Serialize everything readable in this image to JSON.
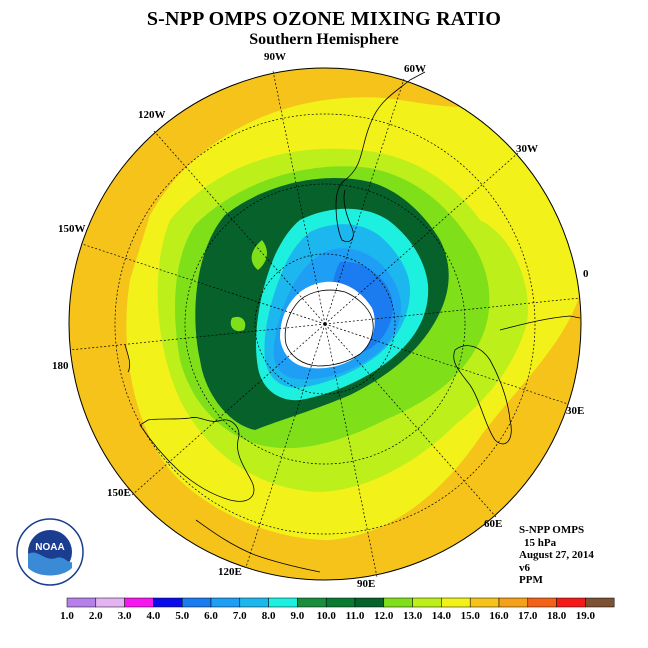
{
  "header": {
    "title": "S-NPP OMPS OZONE MIXING RATIO",
    "subtitle": "Southern Hemisphere"
  },
  "map": {
    "projection": "south-polar-stereographic",
    "longitude_labels": [
      "90W",
      "60W",
      "30W",
      "0",
      "30E",
      "60E",
      "90E",
      "120E",
      "150E",
      "180",
      "150W",
      "120W"
    ]
  },
  "info": {
    "instrument": "S-NPP OMPS",
    "level": "15 hPa",
    "date": "August 27, 2014",
    "version": "v6",
    "units": "PPM"
  },
  "colorbar": {
    "labels": [
      "1.0",
      "2.0",
      "3.0",
      "4.0",
      "5.0",
      "6.0",
      "7.0",
      "8.0",
      "9.0",
      "10.0",
      "11.0",
      "12.0",
      "13.0",
      "14.0",
      "15.0",
      "16.0",
      "17.0",
      "18.0",
      "19.0"
    ],
    "colors": [
      "#b580ea",
      "#e2b4f2",
      "#f516f0",
      "#0c0cea",
      "#1a7cf0",
      "#1e9ef5",
      "#1cb7ee",
      "#1ef0e0",
      "#1a8c3e",
      "#0a7a32",
      "#07612a",
      "#7fe01a",
      "#bdf01a",
      "#f2f21a",
      "#f5c31a",
      "#f5a01a",
      "#f4621a",
      "#f41a1a",
      "#7c5134"
    ]
  },
  "logo": {
    "text": "NOAA"
  }
}
